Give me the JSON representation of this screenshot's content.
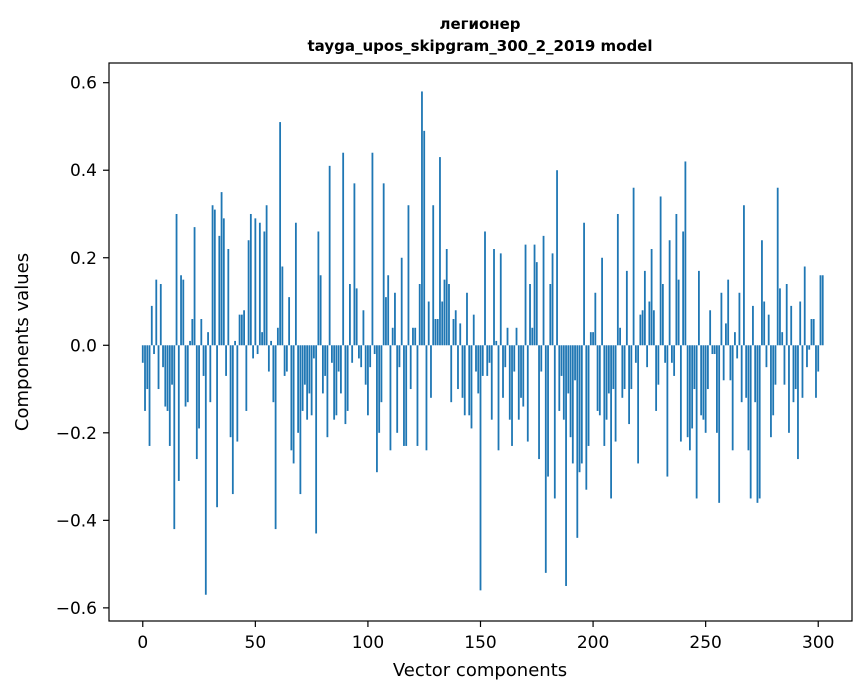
{
  "chart_data": {
    "type": "bar",
    "title": "легионер",
    "subtitle": "tayga_upos_skipgram_300_2_2019 model",
    "xlabel": "Vector components",
    "ylabel": "Components values",
    "xlim": [
      -15,
      315
    ],
    "ylim": [
      -0.63,
      0.645
    ],
    "xticks": [
      0,
      50,
      100,
      150,
      200,
      250,
      300
    ],
    "yticks": [
      -0.6,
      -0.4,
      -0.2,
      0.0,
      0.2,
      0.4,
      0.6
    ],
    "xtick_labels": [
      "0",
      "50",
      "100",
      "150",
      "200",
      "250",
      "300"
    ],
    "ytick_labels": [
      "−0.6",
      "−0.4",
      "−0.2",
      "0.0",
      "0.2",
      "0.4",
      "0.6"
    ],
    "grid": false,
    "color": "#1f77b4",
    "x_start": 0,
    "values": [
      -0.04,
      -0.15,
      -0.1,
      -0.23,
      0.09,
      -0.02,
      0.15,
      -0.1,
      0.14,
      -0.05,
      -0.14,
      -0.15,
      -0.23,
      -0.09,
      -0.42,
      0.3,
      -0.31,
      0.16,
      0.15,
      -0.14,
      -0.13,
      0.01,
      0.06,
      0.27,
      -0.26,
      -0.19,
      0.06,
      -0.07,
      -0.57,
      0.03,
      -0.13,
      0.32,
      0.31,
      -0.37,
      0.25,
      0.35,
      0.29,
      -0.07,
      0.22,
      -0.21,
      -0.34,
      0.01,
      -0.22,
      0.07,
      0.07,
      0.08,
      -0.15,
      0.24,
      0.3,
      -0.03,
      0.29,
      -0.02,
      0.28,
      0.03,
      0.26,
      0.32,
      -0.06,
      0.01,
      -0.13,
      -0.42,
      0.04,
      0.51,
      0.18,
      -0.07,
      -0.06,
      0.11,
      -0.24,
      -0.27,
      0.28,
      -0.2,
      -0.34,
      -0.15,
      -0.09,
      -0.17,
      -0.11,
      -0.16,
      -0.03,
      -0.43,
      0.26,
      0.16,
      -0.11,
      -0.07,
      -0.21,
      0.41,
      -0.04,
      -0.17,
      -0.16,
      -0.06,
      -0.11,
      0.44,
      -0.18,
      -0.15,
      0.14,
      -0.04,
      0.37,
      0.13,
      -0.03,
      -0.05,
      0.08,
      -0.09,
      -0.16,
      -0.05,
      0.44,
      -0.02,
      -0.29,
      -0.2,
      -0.13,
      0.37,
      0.11,
      0.16,
      -0.24,
      0.04,
      0.12,
      -0.2,
      -0.05,
      0.2,
      -0.23,
      -0.23,
      0.32,
      -0.1,
      0.04,
      0.04,
      -0.23,
      0.14,
      0.58,
      0.49,
      -0.24,
      0.1,
      -0.12,
      0.32,
      0.06,
      0.06,
      0.43,
      0.1,
      0.15,
      0.22,
      0.14,
      -0.13,
      0.06,
      0.08,
      -0.1,
      0.05,
      -0.12,
      -0.16,
      0.12,
      -0.16,
      -0.19,
      0.07,
      -0.06,
      -0.11,
      -0.56,
      -0.07,
      0.26,
      -0.07,
      -0.04,
      -0.17,
      0.22,
      0.01,
      -0.24,
      0.21,
      -0.12,
      -0.05,
      0.04,
      -0.17,
      -0.23,
      -0.06,
      0.04,
      -0.17,
      -0.12,
      -0.14,
      0.23,
      -0.22,
      0.14,
      0.04,
      0.23,
      0.19,
      -0.26,
      -0.06,
      0.25,
      -0.52,
      -0.3,
      0.14,
      0.21,
      -0.35,
      0.4,
      -0.15,
      -0.07,
      -0.17,
      -0.55,
      -0.11,
      -0.21,
      -0.27,
      -0.08,
      -0.44,
      -0.29,
      -0.27,
      0.28,
      -0.33,
      -0.23,
      0.03,
      0.03,
      0.12,
      -0.15,
      -0.16,
      0.2,
      -0.23,
      -0.17,
      -0.11,
      -0.35,
      -0.1,
      -0.22,
      0.3,
      0.04,
      -0.12,
      -0.1,
      0.17,
      -0.18,
      -0.1,
      0.36,
      -0.04,
      -0.27,
      0.07,
      0.08,
      0.17,
      -0.05,
      0.1,
      0.22,
      0.08,
      -0.15,
      -0.09,
      0.34,
      0.14,
      -0.04,
      -0.3,
      0.24,
      -0.04,
      -0.07,
      0.3,
      0.15,
      -0.22,
      0.26,
      0.42,
      -0.21,
      -0.24,
      -0.19,
      -0.1,
      -0.35,
      0.17,
      -0.16,
      -0.17,
      -0.2,
      -0.1,
      0.08,
      -0.02,
      -0.02,
      -0.2,
      -0.36,
      0.12,
      -0.08,
      0.05,
      0.15,
      -0.08,
      -0.24,
      0.03,
      -0.03,
      0.12,
      -0.13,
      0.32,
      -0.12,
      -0.24,
      -0.35,
      0.09,
      -0.13,
      -0.36,
      -0.35,
      0.24,
      0.1,
      -0.05,
      0.07,
      -0.21,
      -0.16,
      -0.09,
      0.36,
      0.13,
      0.03,
      -0.09,
      0.14,
      -0.2,
      0.09,
      -0.13,
      -0.1,
      -0.26,
      0.1,
      -0.12,
      0.18,
      -0.05,
      -0.01,
      0.06,
      0.06,
      -0.12,
      -0.06,
      0.16,
      0.16
    ]
  }
}
